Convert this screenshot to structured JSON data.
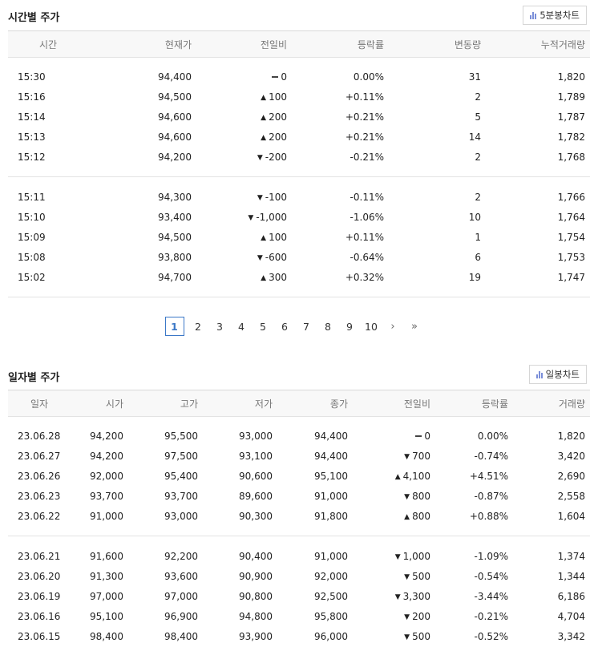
{
  "hourly": {
    "title": "시간별 주가",
    "chart_button": "5분봉차트",
    "headers": [
      "시간",
      "현재가",
      "전일비",
      "등락률",
      "변동량",
      "누적거래량"
    ],
    "rows": [
      {
        "time": "15:30",
        "price": "94,400",
        "dir": "same",
        "change": "0",
        "rate": "0.00%",
        "vol": "31",
        "acc": "1,820"
      },
      {
        "time": "15:16",
        "price": "94,500",
        "dir": "up",
        "change": "100",
        "rate": "+0.11%",
        "vol": "2",
        "acc": "1,789"
      },
      {
        "time": "15:14",
        "price": "94,600",
        "dir": "up",
        "change": "200",
        "rate": "+0.21%",
        "vol": "5",
        "acc": "1,787"
      },
      {
        "time": "15:13",
        "price": "94,600",
        "dir": "up",
        "change": "200",
        "rate": "+0.21%",
        "vol": "14",
        "acc": "1,782"
      },
      {
        "time": "15:12",
        "price": "94,200",
        "dir": "down",
        "change": "-200",
        "rate": "-0.21%",
        "vol": "2",
        "acc": "1,768"
      },
      {
        "time": "15:11",
        "price": "94,300",
        "dir": "down",
        "change": "-100",
        "rate": "-0.11%",
        "vol": "2",
        "acc": "1,766"
      },
      {
        "time": "15:10",
        "price": "93,400",
        "dir": "down",
        "change": "-1,000",
        "rate": "-1.06%",
        "vol": "10",
        "acc": "1,764"
      },
      {
        "time": "15:09",
        "price": "94,500",
        "dir": "up",
        "change": "100",
        "rate": "+0.11%",
        "vol": "1",
        "acc": "1,754"
      },
      {
        "time": "15:08",
        "price": "93,800",
        "dir": "down",
        "change": "-600",
        "rate": "-0.64%",
        "vol": "6",
        "acc": "1,753"
      },
      {
        "time": "15:02",
        "price": "94,700",
        "dir": "up",
        "change": "300",
        "rate": "+0.32%",
        "vol": "19",
        "acc": "1,747"
      }
    ]
  },
  "pagination": {
    "pages": [
      "1",
      "2",
      "3",
      "4",
      "5",
      "6",
      "7",
      "8",
      "9",
      "10"
    ],
    "current": "1",
    "next": "›",
    "last": "»"
  },
  "daily": {
    "title": "일자별 주가",
    "chart_button": "일봉차트",
    "headers": [
      "일자",
      "시가",
      "고가",
      "저가",
      "종가",
      "전일비",
      "등락률",
      "거래량"
    ],
    "rows": [
      {
        "date": "23.06.28",
        "open": "94,200",
        "high": "95,500",
        "low": "93,000",
        "close": "94,400",
        "dir": "same",
        "change": "0",
        "rate": "0.00%",
        "vol": "1,820"
      },
      {
        "date": "23.06.27",
        "open": "94,200",
        "high": "97,500",
        "low": "93,100",
        "close": "94,400",
        "dir": "down",
        "change": "700",
        "rate": "-0.74%",
        "vol": "3,420"
      },
      {
        "date": "23.06.26",
        "open": "92,000",
        "high": "95,400",
        "low": "90,600",
        "close": "95,100",
        "dir": "up",
        "change": "4,100",
        "rate": "+4.51%",
        "vol": "2,690"
      },
      {
        "date": "23.06.23",
        "open": "93,700",
        "high": "93,700",
        "low": "89,600",
        "close": "91,000",
        "dir": "down",
        "change": "800",
        "rate": "-0.87%",
        "vol": "2,558"
      },
      {
        "date": "23.06.22",
        "open": "91,000",
        "high": "93,000",
        "low": "90,300",
        "close": "91,800",
        "dir": "up",
        "change": "800",
        "rate": "+0.88%",
        "vol": "1,604"
      },
      {
        "date": "23.06.21",
        "open": "91,600",
        "high": "92,200",
        "low": "90,400",
        "close": "91,000",
        "dir": "down",
        "change": "1,000",
        "rate": "-1.09%",
        "vol": "1,374"
      },
      {
        "date": "23.06.20",
        "open": "91,300",
        "high": "93,600",
        "low": "90,900",
        "close": "92,000",
        "dir": "down",
        "change": "500",
        "rate": "-0.54%",
        "vol": "1,344"
      },
      {
        "date": "23.06.19",
        "open": "97,000",
        "high": "97,000",
        "low": "90,800",
        "close": "92,500",
        "dir": "down",
        "change": "3,300",
        "rate": "-3.44%",
        "vol": "6,186"
      },
      {
        "date": "23.06.16",
        "open": "95,100",
        "high": "96,900",
        "low": "94,800",
        "close": "95,800",
        "dir": "down",
        "change": "200",
        "rate": "-0.21%",
        "vol": "4,704"
      },
      {
        "date": "23.06.15",
        "open": "98,400",
        "high": "98,400",
        "low": "93,900",
        "close": "96,000",
        "dir": "down",
        "change": "500",
        "rate": "-0.52%",
        "vol": "3,342"
      }
    ]
  },
  "colors": {
    "up": "#e21b1b",
    "down": "#2a5fd3",
    "active_page": "#3b78c7"
  },
  "icons": {
    "chart_button": "bar-chart-icon",
    "up": "triangle-up-icon",
    "down": "triangle-down-icon",
    "same": "flat-dash-icon"
  }
}
